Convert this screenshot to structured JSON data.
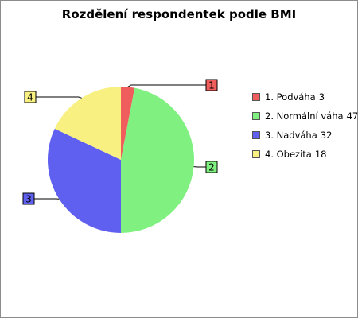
{
  "chart_data": {
    "type": "pie",
    "title": "Rozdělení respondentek podle BMI",
    "slices": [
      {
        "label": "1",
        "name": "1. Podváha",
        "value": 3,
        "color": "#f05d5d"
      },
      {
        "label": "2",
        "name": "2. Normální váha",
        "value": 47,
        "color": "#80f080"
      },
      {
        "label": "3",
        "name": "3. Nadváha",
        "value": 32,
        "color": "#6060f0"
      },
      {
        "label": "4",
        "name": "4. Obezita",
        "value": 18,
        "color": "#f8f080"
      }
    ],
    "legend_position": "right"
  }
}
